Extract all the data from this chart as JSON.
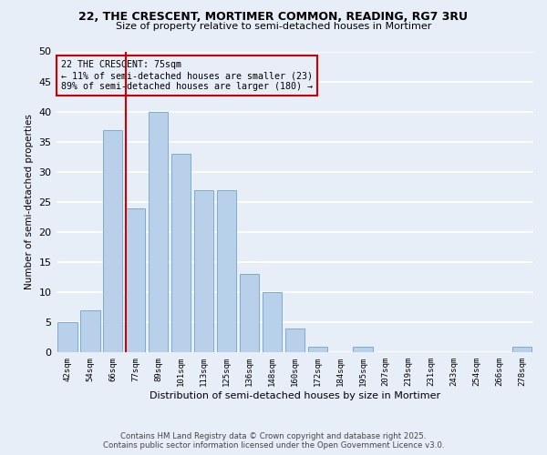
{
  "title": "22, THE CRESCENT, MORTIMER COMMON, READING, RG7 3RU",
  "subtitle": "Size of property relative to semi-detached houses in Mortimer",
  "xlabel": "Distribution of semi-detached houses by size in Mortimer",
  "ylabel": "Number of semi-detached properties",
  "bar_labels": [
    "42sqm",
    "54sqm",
    "66sqm",
    "77sqm",
    "89sqm",
    "101sqm",
    "113sqm",
    "125sqm",
    "136sqm",
    "148sqm",
    "160sqm",
    "172sqm",
    "184sqm",
    "195sqm",
    "207sqm",
    "219sqm",
    "231sqm",
    "243sqm",
    "254sqm",
    "266sqm",
    "278sqm"
  ],
  "bar_values": [
    5,
    7,
    37,
    24,
    40,
    33,
    27,
    27,
    13,
    10,
    4,
    1,
    0,
    1,
    0,
    0,
    0,
    0,
    0,
    0,
    1
  ],
  "bar_color": "#b8d0ea",
  "bar_edgecolor": "#7aadd4",
  "bg_color": "#e8eef8",
  "grid_color": "#ffffff",
  "vline_x": 2.55,
  "vline_color": "#cc0000",
  "annotation_title": "22 THE CRESCENT: 75sqm",
  "annotation_line1": "← 11% of semi-detached houses are smaller (23)",
  "annotation_line2": "89% of semi-detached houses are larger (180) →",
  "annotation_box_color": "#cc0000",
  "ylim": [
    0,
    50
  ],
  "yticks": [
    0,
    5,
    10,
    15,
    20,
    25,
    30,
    35,
    40,
    45,
    50
  ],
  "footer1": "Contains HM Land Registry data © Crown copyright and database right 2025.",
  "footer2": "Contains public sector information licensed under the Open Government Licence v3.0."
}
